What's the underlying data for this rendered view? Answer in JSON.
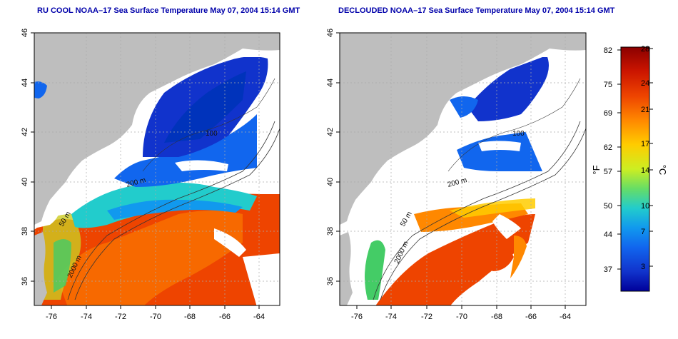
{
  "panels": [
    {
      "title": "RU COOL NOAA–17 Sea Surface Temperature May 07, 2004 15:14 GMT"
    },
    {
      "title": "DECLOUDED NOAA–17 Sea Surface Temperature May 07, 2004 15:14 GMT"
    }
  ],
  "axes": {
    "lon_ticks": [
      "-76",
      "-74",
      "-72",
      "-70",
      "-68",
      "-66",
      "-64"
    ],
    "lat_ticks": [
      "46",
      "44",
      "42",
      "40",
      "38",
      "36"
    ]
  },
  "contour_labels": {
    "left": [
      "50 m",
      "200 m",
      "2000 m",
      "100"
    ],
    "right": [
      "50 m",
      "200 m",
      "2000 m",
      "100"
    ]
  },
  "colorbar": {
    "unit_f": "°F",
    "unit_c": "°C",
    "f_ticks": [
      "82",
      "75",
      "69",
      "62",
      "57",
      "50",
      "44",
      "37"
    ],
    "c_ticks": [
      "28",
      "24",
      "21",
      "17",
      "14",
      "10",
      "7",
      "3"
    ]
  },
  "colors": {
    "land": "#bebebe",
    "cloud": "#ffffff",
    "grid": "#aaaaaa",
    "title": "#0000aa",
    "colorbar_stops": [
      "#8b0000",
      "#cc1500",
      "#ee4400",
      "#ff8800",
      "#ffcc00",
      "#ccee22",
      "#66dd66",
      "#22cccc",
      "#1199ee",
      "#1166ee",
      "#1133cc",
      "#000099"
    ]
  }
}
